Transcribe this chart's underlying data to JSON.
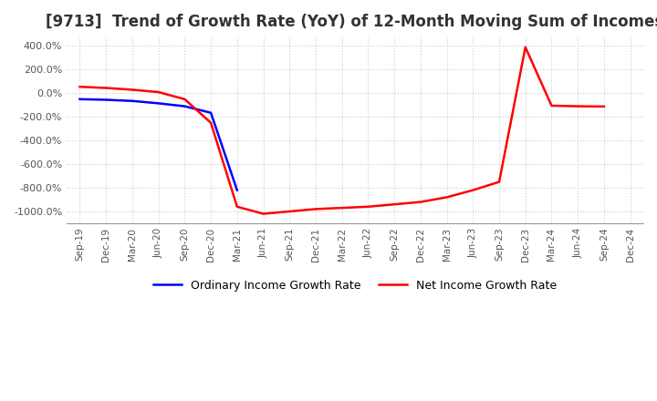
{
  "title": "[9713]  Trend of Growth Rate (YoY) of 12-Month Moving Sum of Incomes",
  "title_fontsize": 12,
  "ylim": [
    -1100,
    480
  ],
  "yticks": [
    400,
    200,
    0,
    -200,
    -400,
    -600,
    -800,
    -1000
  ],
  "ytick_labels": [
    "400.0%",
    "200.0%",
    "0.0%",
    "-200.0%",
    "-400.0%",
    "-600.0%",
    "-800.0%",
    "-1000.0%"
  ],
  "legend_labels": [
    "Ordinary Income Growth Rate",
    "Net Income Growth Rate"
  ],
  "legend_colors": [
    "#0000ff",
    "#ff0000"
  ],
  "background_color": "#ffffff",
  "grid_color": "#cccccc",
  "x_labels": [
    "Sep-19",
    "Dec-19",
    "Mar-20",
    "Jun-20",
    "Sep-20",
    "Dec-20",
    "Mar-21",
    "Jun-21",
    "Sep-21",
    "Dec-21",
    "Mar-22",
    "Jun-22",
    "Sep-22",
    "Dec-22",
    "Mar-23",
    "Jun-23",
    "Sep-23",
    "Dec-23",
    "Mar-24",
    "Jun-24",
    "Sep-24",
    "Dec-24"
  ],
  "ordinary_income": [
    -50,
    -55,
    -65,
    -85,
    -110,
    -165,
    -820,
    null,
    null,
    null,
    null,
    null,
    null,
    null,
    null,
    null,
    null,
    null,
    null,
    null,
    null,
    null
  ],
  "net_income": [
    55,
    45,
    30,
    10,
    -50,
    -250,
    -960,
    -1020,
    -1000,
    -980,
    -970,
    -960,
    -940,
    -920,
    -880,
    -820,
    -750,
    390,
    -105,
    -110,
    -112,
    null
  ]
}
